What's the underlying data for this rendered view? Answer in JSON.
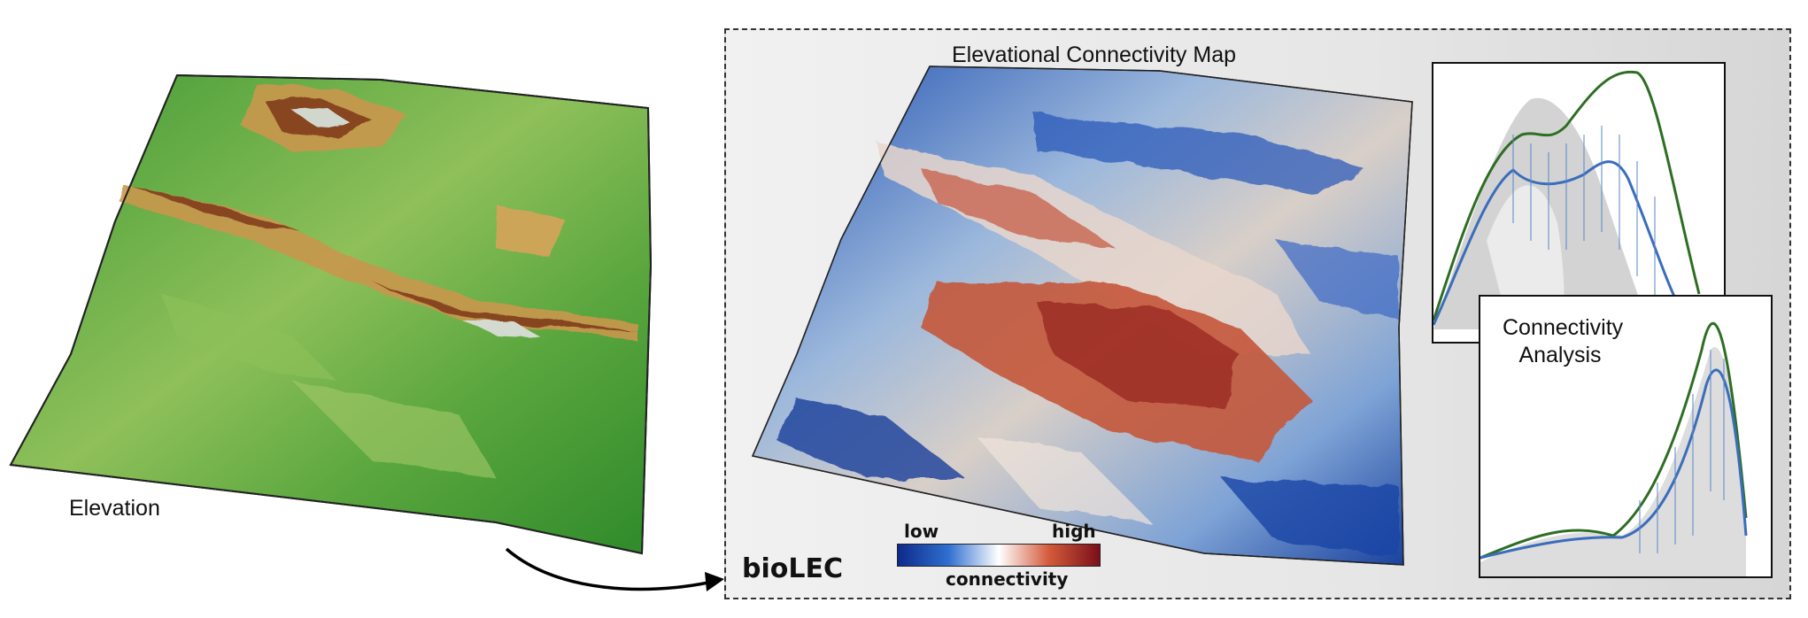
{
  "left_label": "Elevation",
  "panel": {
    "title": "Elevational Connectivity Map",
    "brand": "bioLEC",
    "colorbar": {
      "low": "low",
      "high": "high",
      "caption": "connectivity",
      "colors": [
        "#0d2a8a",
        "#2f6fd0",
        "#ffffff",
        "#d35a3a",
        "#7a0f1a"
      ]
    },
    "inset_label_line1": "Connectivity",
    "inset_label_line2": "Analysis"
  },
  "colors": {
    "elevation_low": "#2f8a2a",
    "elevation_mid": "#d9b56a",
    "elevation_high": "#8a3a1e",
    "connectivity_low": "#1b4fb5",
    "connectivity_high": "#b8442c",
    "curve_green": "#2e6e23",
    "curve_blue": "#3a6dbb",
    "scatter_gray": "#c8c8c8"
  }
}
